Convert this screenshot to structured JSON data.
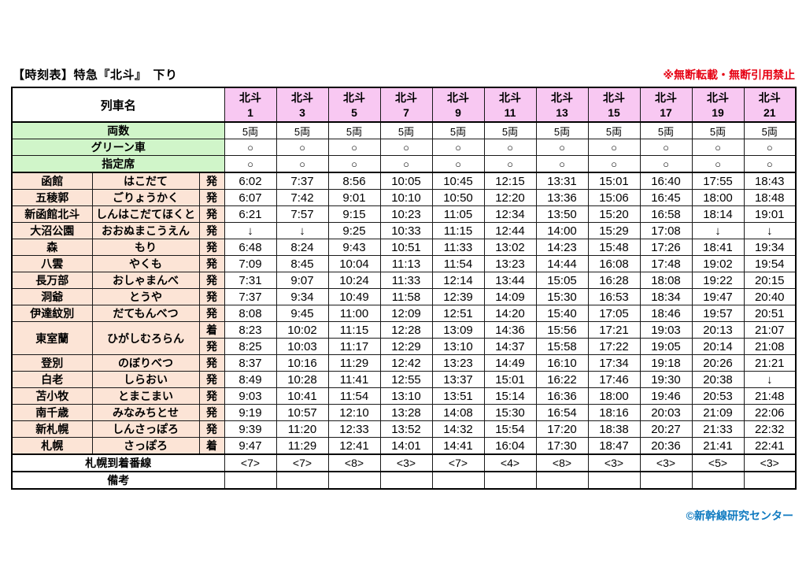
{
  "page": {
    "title": "【時刻表】特急『北斗』　下り",
    "notice": "※無断転載・無断引用禁止",
    "copyright": "©新幹線研究センター"
  },
  "colors": {
    "header_pink": "#f8c8f2",
    "info_green": "#d0f5c9",
    "station_peach": "#fce4d6",
    "notice_red": "#e60012",
    "copyright_blue": "#0f7ac0"
  },
  "table": {
    "train_name_label": "列車名",
    "trains": [
      {
        "name": "北斗",
        "number": "1"
      },
      {
        "name": "北斗",
        "number": "3"
      },
      {
        "name": "北斗",
        "number": "5"
      },
      {
        "name": "北斗",
        "number": "7"
      },
      {
        "name": "北斗",
        "number": "9"
      },
      {
        "name": "北斗",
        "number": "11"
      },
      {
        "name": "北斗",
        "number": "13"
      },
      {
        "name": "北斗",
        "number": "15"
      },
      {
        "name": "北斗",
        "number": "17"
      },
      {
        "name": "北斗",
        "number": "19"
      },
      {
        "name": "北斗",
        "number": "21"
      }
    ],
    "info_rows": [
      {
        "label": "両数",
        "values": [
          "5両",
          "5両",
          "5両",
          "5両",
          "5両",
          "5両",
          "5両",
          "5両",
          "5両",
          "5両",
          "5両"
        ]
      },
      {
        "label": "グリーン車",
        "values": [
          "○",
          "○",
          "○",
          "○",
          "○",
          "○",
          "○",
          "○",
          "○",
          "○",
          "○"
        ]
      },
      {
        "label": "指定席",
        "values": [
          "○",
          "○",
          "○",
          "○",
          "○",
          "○",
          "○",
          "○",
          "○",
          "○",
          "○"
        ]
      }
    ],
    "station_rows": [
      {
        "station": "函館",
        "kana": "はこだて",
        "type": "発",
        "times": [
          "6:02",
          "7:37",
          "8:56",
          "10:05",
          "10:45",
          "12:15",
          "13:31",
          "15:01",
          "16:40",
          "17:55",
          "18:43"
        ]
      },
      {
        "station": "五稜郭",
        "kana": "ごりょうかく",
        "type": "発",
        "times": [
          "6:07",
          "7:42",
          "9:01",
          "10:10",
          "10:50",
          "12:20",
          "13:36",
          "15:06",
          "16:45",
          "18:00",
          "18:48"
        ]
      },
      {
        "station": "新函館北斗",
        "kana": "しんはこだてほくと",
        "type": "発",
        "times": [
          "6:21",
          "7:57",
          "9:15",
          "10:23",
          "11:05",
          "12:34",
          "13:50",
          "15:20",
          "16:58",
          "18:14",
          "19:01"
        ]
      },
      {
        "station": "大沼公園",
        "kana": "おおぬまこうえん",
        "type": "発",
        "times": [
          "↓",
          "↓",
          "9:25",
          "10:33",
          "11:15",
          "12:44",
          "14:00",
          "15:29",
          "17:08",
          "↓",
          "↓"
        ]
      },
      {
        "station": "森",
        "kana": "もり",
        "type": "発",
        "times": [
          "6:48",
          "8:24",
          "9:43",
          "10:51",
          "11:33",
          "13:02",
          "14:23",
          "15:48",
          "17:26",
          "18:41",
          "19:34"
        ]
      },
      {
        "station": "八雲",
        "kana": "やくも",
        "type": "発",
        "times": [
          "7:09",
          "8:45",
          "10:04",
          "11:13",
          "11:54",
          "13:23",
          "14:44",
          "16:08",
          "17:48",
          "19:02",
          "19:54"
        ]
      },
      {
        "station": "長万部",
        "kana": "おしゃまんべ",
        "type": "発",
        "times": [
          "7:31",
          "9:07",
          "10:24",
          "11:33",
          "12:14",
          "13:44",
          "15:05",
          "16:28",
          "18:08",
          "19:22",
          "20:15"
        ]
      },
      {
        "station": "洞爺",
        "kana": "とうや",
        "type": "発",
        "times": [
          "7:37",
          "9:34",
          "10:49",
          "11:58",
          "12:39",
          "14:09",
          "15:30",
          "16:53",
          "18:34",
          "19:47",
          "20:40"
        ]
      },
      {
        "station": "伊達紋別",
        "kana": "だてもんべつ",
        "type": "発",
        "times": [
          "8:08",
          "9:45",
          "11:00",
          "12:09",
          "12:51",
          "14:20",
          "15:40",
          "17:05",
          "18:46",
          "19:57",
          "20:51"
        ]
      },
      {
        "station": "東室蘭",
        "kana": "ひがしむろらん",
        "type": "着",
        "rowspan": 2,
        "times": [
          "8:23",
          "10:02",
          "11:15",
          "12:28",
          "13:09",
          "14:36",
          "15:56",
          "17:21",
          "19:03",
          "20:13",
          "21:07"
        ]
      },
      {
        "station": null,
        "kana": null,
        "type": "発",
        "times": [
          "8:25",
          "10:03",
          "11:17",
          "12:29",
          "13:10",
          "14:37",
          "15:58",
          "17:22",
          "19:05",
          "20:14",
          "21:08"
        ]
      },
      {
        "station": "登別",
        "kana": "のぼりべつ",
        "type": "発",
        "times": [
          "8:37",
          "10:16",
          "11:29",
          "12:42",
          "13:23",
          "14:49",
          "16:10",
          "17:34",
          "19:18",
          "20:26",
          "21:21"
        ]
      },
      {
        "station": "白老",
        "kana": "しらおい",
        "type": "発",
        "times": [
          "8:49",
          "10:28",
          "11:41",
          "12:55",
          "13:37",
          "15:01",
          "16:22",
          "17:46",
          "19:30",
          "20:38",
          "↓"
        ]
      },
      {
        "station": "苫小牧",
        "kana": "とまこまい",
        "type": "発",
        "times": [
          "9:03",
          "10:41",
          "11:54",
          "13:10",
          "13:51",
          "15:14",
          "16:36",
          "18:00",
          "19:46",
          "20:53",
          "21:48"
        ]
      },
      {
        "station": "南千歳",
        "kana": "みなみちとせ",
        "type": "発",
        "times": [
          "9:19",
          "10:57",
          "12:10",
          "13:28",
          "14:08",
          "15:30",
          "16:54",
          "18:16",
          "20:03",
          "21:09",
          "22:06"
        ]
      },
      {
        "station": "新札幌",
        "kana": "しんさっぽろ",
        "type": "発",
        "times": [
          "9:39",
          "11:20",
          "12:33",
          "13:52",
          "14:32",
          "15:54",
          "17:20",
          "18:38",
          "20:27",
          "21:33",
          "22:32"
        ]
      },
      {
        "station": "札幌",
        "kana": "さっぽろ",
        "type": "着",
        "times": [
          "9:47",
          "11:29",
          "12:41",
          "14:01",
          "14:41",
          "16:04",
          "17:30",
          "18:47",
          "20:36",
          "21:41",
          "22:41"
        ]
      }
    ],
    "track_row": {
      "label": "札幌到着番線",
      "values": [
        "<7>",
        "<7>",
        "<8>",
        "<3>",
        "<7>",
        "<4>",
        "<8>",
        "<3>",
        "<3>",
        "<5>",
        "<3>"
      ]
    },
    "remarks_row": {
      "label": "備考",
      "values": [
        "",
        "",
        "",
        "",
        "",
        "",
        "",
        "",
        "",
        "",
        ""
      ]
    }
  }
}
